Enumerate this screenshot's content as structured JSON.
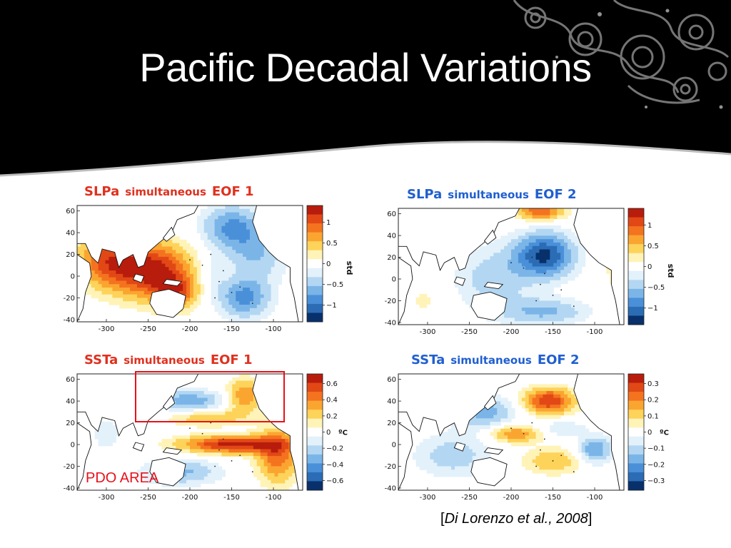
{
  "slide": {
    "title": "Pacific Decadal Variations",
    "citation_open": "[",
    "citation_text": "Di Lorenzo et al., 2008",
    "citation_close": "]",
    "annotation_label": "PDO AREA"
  },
  "colors": {
    "banner": "#000000",
    "title_text": "#ffffff",
    "eof1_title": "#e0301e",
    "eof2_title": "#1f5fd0",
    "annotation": "#e8101a"
  },
  "axes": {
    "lon_ticks": [
      "-300",
      "-250",
      "-200",
      "-150",
      "-100"
    ],
    "lat_ticks": [
      "60",
      "40",
      "20",
      "0",
      "-20",
      "-40"
    ]
  },
  "panels": [
    {
      "variable": "SLPa",
      "mode": "simultaneous",
      "eof": "EOF 1",
      "title_color": "#e0301e",
      "colorbar_ticks": [
        "1",
        "0.5",
        "0",
        "−0.5",
        "−1"
      ],
      "colorbar_unit": "std"
    },
    {
      "variable": "SLPa",
      "mode": "simultaneous",
      "eof": "EOF 2",
      "title_color": "#1f5fd0",
      "colorbar_ticks": [
        "1",
        "0.5",
        "0",
        "−0.5",
        "−1"
      ],
      "colorbar_unit": "std"
    },
    {
      "variable": "SSTa",
      "mode": "simultaneous",
      "eof": "EOF 1",
      "title_color": "#e0301e",
      "colorbar_ticks": [
        "0.6",
        "0.4",
        "0.2",
        "0",
        "−0.2",
        "−0.4",
        "−0.6"
      ],
      "colorbar_unit": "ºC"
    },
    {
      "variable": "SSTa",
      "mode": "simultaneous",
      "eof": "EOF 2",
      "title_color": "#1f5fd0",
      "colorbar_ticks": [
        "0.3",
        "0.2",
        "0.1",
        "0",
        "−0.1",
        "−0.2",
        "−0.3"
      ],
      "colorbar_unit": "ºC"
    }
  ]
}
